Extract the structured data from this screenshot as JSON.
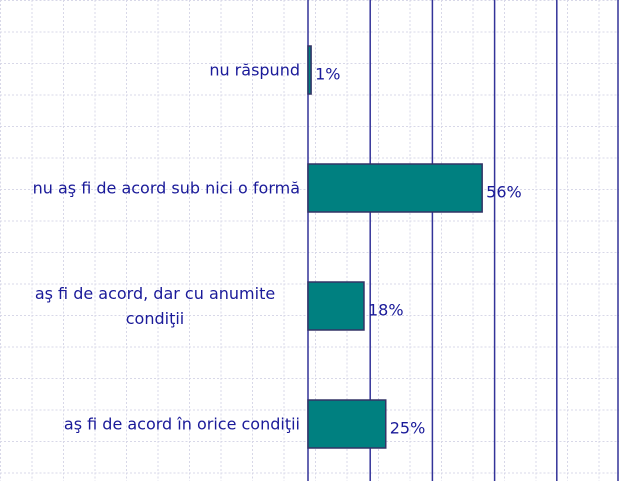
{
  "chart_data": {
    "type": "barh",
    "categories": [
      "nu răspund",
      "nu aş fi de acord sub nici o formă",
      "aş fi de acord, dar cu anumite condiţii",
      "aş fi de acord în orice condiţii"
    ],
    "values": [
      1,
      56,
      18,
      25
    ],
    "value_labels": [
      "1%",
      "56%",
      "18%",
      "25%"
    ],
    "color": "#008080",
    "xlim": [
      0,
      100
    ],
    "xticks": [
      0,
      20,
      40,
      60,
      80,
      100
    ],
    "grid": true
  }
}
